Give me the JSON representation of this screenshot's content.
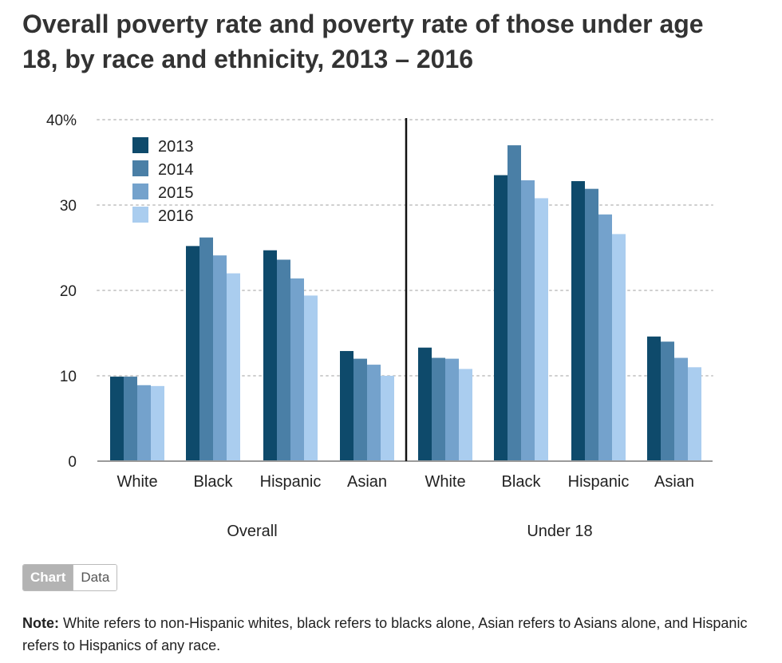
{
  "chart_data": {
    "type": "bar",
    "title": "Overall poverty rate and poverty rate of those under age 18, by race and ethnicity, 2013 – 2016",
    "xlabel": "",
    "ylabel": "",
    "ylim": [
      0,
      40
    ],
    "yticks": [
      {
        "value": 0,
        "label": "0"
      },
      {
        "value": 10,
        "label": "10"
      },
      {
        "value": 20,
        "label": "20"
      },
      {
        "value": 30,
        "label": "30"
      },
      {
        "value": 40,
        "label": "40%"
      }
    ],
    "grid": true,
    "legend_position": "top-left",
    "groups": [
      {
        "name": "Overall",
        "categories": [
          "White",
          "Black",
          "Hispanic",
          "Asian"
        ]
      },
      {
        "name": "Under 18",
        "categories": [
          "White",
          "Black",
          "Hispanic",
          "Asian"
        ]
      }
    ],
    "series": [
      {
        "name": "2013",
        "color": "#0e4a6b",
        "values": [
          [
            9.9,
            25.2,
            24.7,
            12.9
          ],
          [
            13.3,
            33.5,
            32.8,
            14.6
          ]
        ]
      },
      {
        "name": "2014",
        "color": "#4a7fa6",
        "values": [
          [
            9.9,
            26.2,
            23.6,
            12.0
          ],
          [
            12.1,
            37.0,
            31.9,
            14.0
          ]
        ]
      },
      {
        "name": "2015",
        "color": "#74a2cc",
        "values": [
          [
            8.9,
            24.1,
            21.4,
            11.3
          ],
          [
            12.0,
            32.9,
            28.9,
            12.1
          ]
        ]
      },
      {
        "name": "2016",
        "color": "#aacdef",
        "values": [
          [
            8.8,
            22.0,
            19.4,
            10.0
          ],
          [
            10.8,
            30.8,
            26.6,
            11.0
          ]
        ]
      }
    ]
  },
  "controls": {
    "chart_label": "Chart",
    "data_label": "Data"
  },
  "note": {
    "label": "Note:",
    "text": "White refers to non-Hispanic whites, black refers to blacks alone, Asian refers to Asians alone, and Hispanic refers to Hispanics of any race."
  }
}
